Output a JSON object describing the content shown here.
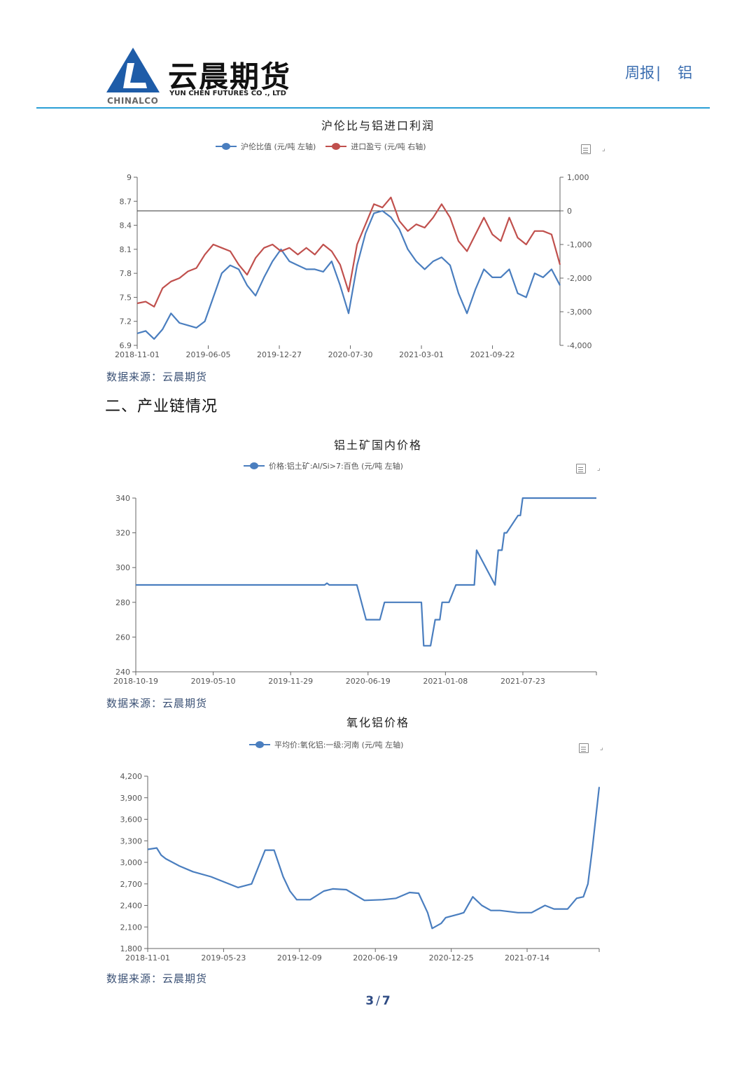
{
  "header": {
    "logo_caption": "CHINALCO",
    "brand_cn": "云晨期货",
    "brand_en": "YUN CHEN FUTURES CO ., LTD",
    "report_type": "周报",
    "report_sep": "|",
    "report_topic": "铝",
    "accent_color": "#2a9fd6"
  },
  "section": {
    "heading": "二、产业链情况"
  },
  "sources": {
    "chart1": "数据来源：云晨期货",
    "chart2": "数据来源：云晨期货",
    "chart3": "数据来源：云晨期货"
  },
  "footer": {
    "page_current": "3",
    "page_sep": "/",
    "page_total": "7"
  },
  "icons": {
    "data_view": "doc-icon",
    "restore": "resize-icon"
  },
  "chart_data": [
    {
      "type": "line",
      "title": "沪伦比与铝进口利润",
      "legend": [
        "沪伦比值 (元/吨 左轴)",
        "进口盈亏 (元/吨 右轴)"
      ],
      "colors": [
        "#4a7ebf",
        "#c0504d"
      ],
      "x_ticks": [
        "2018-11-01",
        "2019-06-05",
        "2019-12-27",
        "2020-07-30",
        "2021-03-01",
        "2021-09-22"
      ],
      "y_left": {
        "ticks": [
          6.9,
          7.2,
          7.5,
          7.8,
          8.1,
          8.4,
          8.7,
          9
        ],
        "range": [
          6.9,
          9
        ]
      },
      "y_right": {
        "ticks": [
          -4000,
          -3000,
          -2000,
          -1000,
          0,
          1000
        ],
        "tick_labels": [
          "-4,000",
          "-3,000",
          "-2,000",
          "-1,000",
          "0",
          "1,000"
        ],
        "range": [
          -4000,
          1000
        ]
      },
      "zero_line_right": 0,
      "series": [
        {
          "name": "沪伦比值",
          "axis": "left",
          "x": [
            0,
            0.02,
            0.04,
            0.06,
            0.08,
            0.1,
            0.12,
            0.14,
            0.16,
            0.18,
            0.2,
            0.22,
            0.24,
            0.26,
            0.28,
            0.3,
            0.32,
            0.34,
            0.36,
            0.38,
            0.4,
            0.42,
            0.44,
            0.46,
            0.48,
            0.5,
            0.52,
            0.54,
            0.56,
            0.58,
            0.6,
            0.62,
            0.64,
            0.66,
            0.68,
            0.7,
            0.72,
            0.74,
            0.76,
            0.78,
            0.8,
            0.82,
            0.84,
            0.86,
            0.88,
            0.9,
            0.92,
            0.94,
            0.96,
            0.98,
            1.0
          ],
          "values": [
            7.05,
            7.08,
            6.98,
            7.1,
            7.3,
            7.18,
            7.15,
            7.12,
            7.2,
            7.5,
            7.8,
            7.9,
            7.85,
            7.65,
            7.52,
            7.75,
            7.95,
            8.1,
            7.95,
            7.9,
            7.85,
            7.85,
            7.82,
            7.95,
            7.65,
            7.3,
            7.9,
            8.3,
            8.55,
            8.58,
            8.5,
            8.35,
            8.1,
            7.95,
            7.85,
            7.95,
            8.0,
            7.9,
            7.55,
            7.3,
            7.6,
            7.85,
            7.75,
            7.75,
            7.85,
            7.55,
            7.5,
            7.8,
            7.75,
            7.85,
            7.65
          ]
        },
        {
          "name": "进口盈亏",
          "axis": "right",
          "x": [
            0,
            0.02,
            0.04,
            0.06,
            0.08,
            0.1,
            0.12,
            0.14,
            0.16,
            0.18,
            0.2,
            0.22,
            0.24,
            0.26,
            0.28,
            0.3,
            0.32,
            0.34,
            0.36,
            0.38,
            0.4,
            0.42,
            0.44,
            0.46,
            0.48,
            0.5,
            0.52,
            0.54,
            0.56,
            0.58,
            0.6,
            0.62,
            0.64,
            0.66,
            0.68,
            0.7,
            0.72,
            0.74,
            0.76,
            0.78,
            0.8,
            0.82,
            0.84,
            0.86,
            0.88,
            0.9,
            0.92,
            0.94,
            0.96,
            0.98,
            1.0
          ],
          "values": [
            -2750,
            -2700,
            -2850,
            -2300,
            -2100,
            -2000,
            -1800,
            -1700,
            -1300,
            -1000,
            -1100,
            -1200,
            -1600,
            -1900,
            -1400,
            -1100,
            -1000,
            -1200,
            -1100,
            -1300,
            -1100,
            -1300,
            -1000,
            -1200,
            -1600,
            -2400,
            -1000,
            -400,
            200,
            100,
            400,
            -300,
            -600,
            -400,
            -500,
            -200,
            200,
            -200,
            -900,
            -1200,
            -700,
            -200,
            -700,
            -900,
            -200,
            -800,
            -1000,
            -600,
            -600,
            -700,
            -1600
          ]
        }
      ]
    },
    {
      "type": "line",
      "title": "铝土矿国内价格",
      "legend": [
        "价格:铝土矿:Al/Si>7:百色 (元/吨 左轴)"
      ],
      "colors": [
        "#4a7ebf"
      ],
      "x_ticks": [
        "2018-10-19",
        "2019-05-10",
        "2019-11-29",
        "2020-06-19",
        "2021-01-08",
        "2021-07-23"
      ],
      "y_left": {
        "ticks": [
          240,
          260,
          280,
          300,
          320,
          340
        ],
        "range": [
          240,
          340
        ]
      },
      "series": [
        {
          "name": "价格:铝土矿:Al/Si>7:百色",
          "x": [
            0,
            0.41,
            0.415,
            0.42,
            0.48,
            0.5,
            0.53,
            0.54,
            0.62,
            0.625,
            0.64,
            0.65,
            0.66,
            0.665,
            0.68,
            0.695,
            0.705,
            0.735,
            0.74,
            0.78,
            0.787,
            0.795,
            0.8,
            0.805,
            0.83,
            0.835,
            0.84,
            0.845,
            0.855,
            0.9,
            0.905,
            1.0
          ],
          "values": [
            290,
            290,
            291,
            290,
            290,
            270,
            270,
            280,
            280,
            255,
            255,
            270,
            270,
            280,
            280,
            290,
            290,
            290,
            310,
            290,
            310,
            310,
            320,
            320,
            330,
            330,
            340,
            340,
            340,
            340,
            340,
            340
          ]
        }
      ]
    },
    {
      "type": "line",
      "title": "氧化铝价格",
      "legend": [
        "平均价:氧化铝:一级:河南 (元/吨 左轴)"
      ],
      "colors": [
        "#4a7ebf"
      ],
      "x_ticks": [
        "2018-11-01",
        "2019-05-23",
        "2019-12-09",
        "2020-06-19",
        "2020-12-25",
        "2021-07-14"
      ],
      "y_left": {
        "ticks": [
          1800,
          2100,
          2400,
          2700,
          3000,
          3300,
          3600,
          3900,
          4200
        ],
        "tick_labels": [
          "1,800",
          "2,100",
          "2,400",
          "2,700",
          "3,000",
          "3,300",
          "3,600",
          "3,900",
          "4,200"
        ],
        "range": [
          1800,
          4200
        ]
      },
      "series": [
        {
          "name": "平均价:氧化铝:一级:河南",
          "x": [
            0,
            0.02,
            0.03,
            0.04,
            0.07,
            0.1,
            0.14,
            0.16,
            0.2,
            0.23,
            0.26,
            0.28,
            0.3,
            0.315,
            0.33,
            0.36,
            0.39,
            0.41,
            0.44,
            0.48,
            0.52,
            0.55,
            0.58,
            0.6,
            0.62,
            0.63,
            0.65,
            0.66,
            0.69,
            0.7,
            0.72,
            0.74,
            0.76,
            0.78,
            0.82,
            0.85,
            0.88,
            0.9,
            0.93,
            0.95,
            0.965,
            0.975,
            0.985,
            1.0
          ],
          "values": [
            3180,
            3200,
            3100,
            3050,
            2950,
            2870,
            2800,
            2750,
            2650,
            2700,
            3170,
            3170,
            2800,
            2600,
            2480,
            2480,
            2600,
            2630,
            2620,
            2470,
            2480,
            2500,
            2580,
            2570,
            2300,
            2080,
            2150,
            2230,
            2280,
            2300,
            2520,
            2400,
            2330,
            2330,
            2300,
            2300,
            2400,
            2350,
            2350,
            2500,
            2520,
            2700,
            3200,
            4050
          ]
        }
      ]
    }
  ]
}
